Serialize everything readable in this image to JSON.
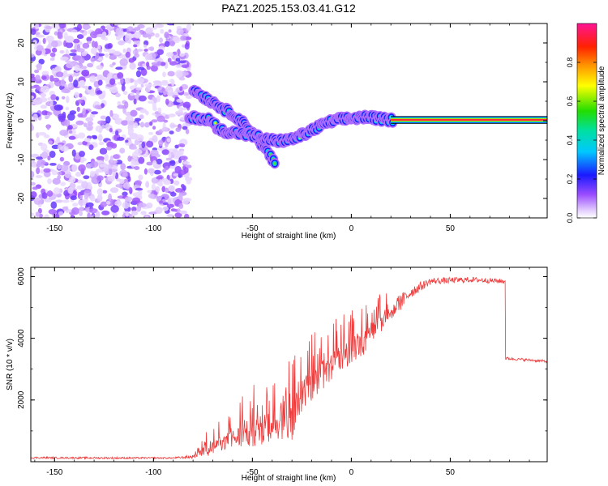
{
  "figure_title": "PAZ1.2025.153.03.41.G12",
  "chart_data": [
    {
      "type": "heatmap",
      "title": "PAZ1.2025.153.03.41.G12",
      "xlabel": "Height of straight line (km)",
      "ylabel": "Frequency (Hz)",
      "xlim": [
        -162,
        99
      ],
      "ylim": [
        -25,
        25
      ],
      "xticks": [
        -150,
        -100,
        -50,
        0,
        50
      ],
      "yticks": [
        -20,
        -10,
        0,
        10,
        20
      ],
      "colorbar": {
        "label": "Normalized spectral amplitude",
        "range": [
          0,
          1
        ],
        "ticks": [
          0.0,
          0.2,
          0.4,
          0.6,
          0.8
        ]
      },
      "noise_region_x": [
        -162,
        -82
      ],
      "ridge": [
        {
          "x": -82,
          "y": 0.5
        },
        {
          "x": -78,
          "y": 0.8
        },
        {
          "x": -72,
          "y": 0.3
        },
        {
          "x": -66,
          "y": -2.5
        },
        {
          "x": -60,
          "y": -3.0
        },
        {
          "x": -54,
          "y": -3.5
        },
        {
          "x": -48,
          "y": -4.0
        },
        {
          "x": -42,
          "y": -5.0
        },
        {
          "x": -36,
          "y": -5.2
        },
        {
          "x": -30,
          "y": -4.8
        },
        {
          "x": -24,
          "y": -3.5
        },
        {
          "x": -18,
          "y": -2.0
        },
        {
          "x": -12,
          "y": -0.5
        },
        {
          "x": -6,
          "y": 0.3
        },
        {
          "x": 0,
          "y": 0.6
        },
        {
          "x": 5,
          "y": 0.9
        },
        {
          "x": 10,
          "y": 0.8
        },
        {
          "x": 15,
          "y": 0.4
        },
        {
          "x": 20,
          "y": 0.2
        },
        {
          "x": 99,
          "y": 0.2
        }
      ],
      "side_branch": [
        {
          "x": -80,
          "y": 8.0
        },
        {
          "x": -74,
          "y": 6.0
        },
        {
          "x": -66,
          "y": 3.5
        },
        {
          "x": -58,
          "y": 1.0
        },
        {
          "x": -50,
          "y": -3.0
        },
        {
          "x": -44,
          "y": -7.0
        },
        {
          "x": -38,
          "y": -11.5
        }
      ]
    },
    {
      "type": "line",
      "xlabel": "Height of straight line (km)",
      "ylabel": "SNR (10 * v/v)",
      "xlim": [
        -162,
        99
      ],
      "ylim": [
        0,
        6300
      ],
      "xticks": [
        -150,
        -100,
        -50,
        0,
        50
      ],
      "yticks": [
        2000,
        4000,
        6000
      ],
      "series": [
        {
          "color": "#ef3b3b",
          "envelope": [
            {
              "x": -162,
              "base": 130,
              "amp": 60
            },
            {
              "x": -120,
              "base": 120,
              "amp": 60
            },
            {
              "x": -90,
              "base": 120,
              "amp": 50
            },
            {
              "x": -80,
              "base": 160,
              "amp": 120
            },
            {
              "x": -72,
              "base": 400,
              "amp": 700
            },
            {
              "x": -62,
              "base": 700,
              "amp": 900
            },
            {
              "x": -52,
              "base": 900,
              "amp": 1500
            },
            {
              "x": -40,
              "base": 1100,
              "amp": 1700
            },
            {
              "x": -30,
              "base": 1300,
              "amp": 2100
            },
            {
              "x": -25,
              "base": 2200,
              "amp": 1800
            },
            {
              "x": -15,
              "base": 2800,
              "amp": 1600
            },
            {
              "x": -5,
              "base": 3300,
              "amp": 1500
            },
            {
              "x": 5,
              "base": 3800,
              "amp": 1500
            },
            {
              "x": 12,
              "base": 4300,
              "amp": 1200
            },
            {
              "x": 20,
              "base": 4800,
              "amp": 700
            },
            {
              "x": 30,
              "base": 5500,
              "amp": 400
            },
            {
              "x": 40,
              "base": 5850,
              "amp": 220
            },
            {
              "x": 60,
              "base": 5900,
              "amp": 180
            },
            {
              "x": 77,
              "base": 5850,
              "amp": 160
            },
            {
              "x": 78,
              "base": 3350,
              "amp": 90
            },
            {
              "x": 99,
              "base": 3250,
              "amp": 90
            }
          ]
        }
      ]
    }
  ]
}
